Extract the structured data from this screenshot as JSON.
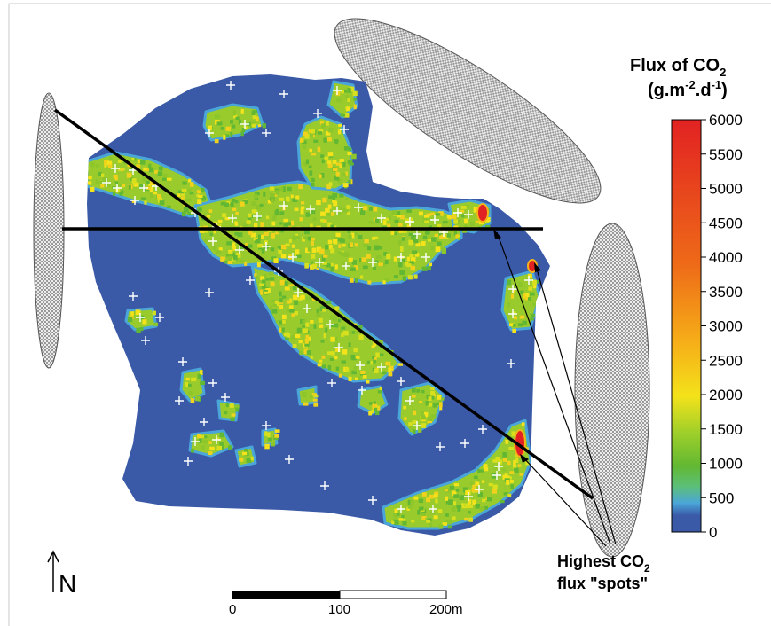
{
  "legend": {
    "title_main": "Flux of  CO",
    "title_sub": "2",
    "units": "(g.m-2.d-1)",
    "units_parts": {
      "a": "(g.m",
      "b": "-2",
      "c": ".d",
      "d": "-1",
      "e": ")"
    },
    "ticks": [
      "6000",
      "5500",
      "5000",
      "4500",
      "4000",
      "3500",
      "3000",
      "2500",
      "2000",
      "1500",
      "1000",
      "500",
      "0"
    ],
    "range": [
      0,
      6000
    ],
    "colors": [
      "#3a5aa8",
      "#4aa6d8",
      "#62b832",
      "#b6d62a",
      "#f4e21a",
      "#f6b218",
      "#ee6a18",
      "#e22222"
    ]
  },
  "annotation": {
    "line1_a": "Highest CO",
    "line1_sub": "2",
    "line2": "flux \"spots\""
  },
  "north_arrow": {
    "label": "N"
  },
  "scale_bar": {
    "labels": [
      "0",
      "100",
      "200m"
    ]
  },
  "map": {
    "background_color": "#3a5aa8",
    "marker_symbol": "+",
    "marker_color": "#ffffff"
  }
}
